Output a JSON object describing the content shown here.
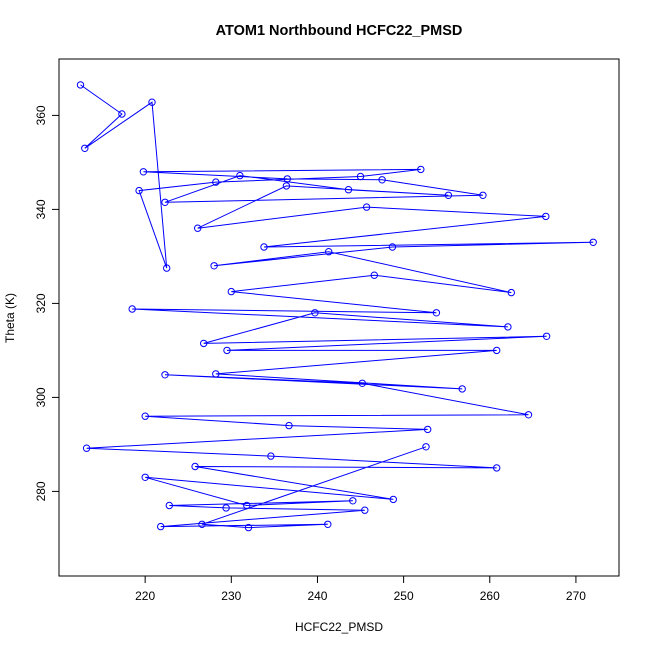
{
  "chart_data": {
    "type": "line",
    "title": "ATOM1 Northbound HCFC22_PMSD",
    "xlabel": "HCFC22_PMSD",
    "ylabel": "Theta (K)",
    "xlim": [
      210,
      275
    ],
    "ylim": [
      262,
      372
    ],
    "x_ticks": [
      220,
      230,
      240,
      250,
      260,
      270
    ],
    "y_ticks": [
      280,
      300,
      320,
      340,
      360
    ],
    "grid": false,
    "series_color": "#0000ff",
    "marker": "open-circle",
    "series": [
      {
        "x": [
          212.5,
          217.3,
          213.0,
          220.8,
          222.5,
          219.3,
          228.2,
          245.0,
          252.0,
          219.8,
          236.5,
          247.5,
          259.2,
          222.3,
          231.0,
          243.6,
          255.2,
          236.4,
          226.1,
          245.7,
          266.5,
          233.8,
          272.0,
          248.7,
          228.0,
          241.3,
          262.5,
          246.6,
          230.0,
          253.8,
          218.5,
          262.1,
          239.7,
          226.8,
          266.6,
          229.5,
          260.8,
          228.2,
          256.8,
          222.3,
          245.2,
          264.5,
          220.0,
          236.7,
          252.8,
          213.2,
          234.6,
          260.8,
          225.8,
          248.8,
          220.0,
          231.8,
          244.1,
          222.8,
          229.4,
          245.5,
          221.8,
          241.2,
          232.0,
          226.6,
          252.6
        ],
        "y": [
          366.5,
          360.3,
          353.0,
          362.8,
          327.5,
          344.0,
          345.8,
          347.0,
          348.5,
          348.0,
          346.5,
          346.3,
          343.0,
          341.5,
          347.2,
          344.2,
          343.0,
          345.0,
          336.0,
          340.5,
          338.5,
          332.0,
          333.0,
          332.0,
          328.0,
          331.0,
          322.3,
          326.0,
          322.5,
          318.0,
          318.8,
          315.0,
          318.0,
          311.5,
          313.0,
          310.0,
          310.0,
          305.0,
          301.8,
          304.8,
          303.0,
          296.3,
          296.0,
          294.0,
          293.2,
          289.2,
          287.5,
          285.0,
          285.3,
          278.3,
          283.0,
          277.0,
          278.0,
          277.0,
          276.5,
          276.0,
          272.5,
          273.0,
          272.3,
          273.0,
          289.5
        ]
      }
    ]
  }
}
